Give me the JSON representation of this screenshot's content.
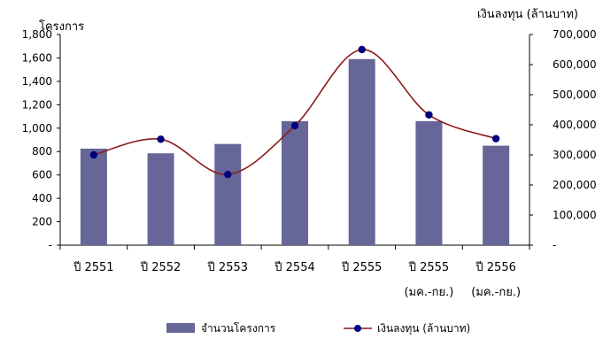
{
  "chart_data": {
    "type": "bar",
    "categories": [
      [
        "ปี 2551"
      ],
      [
        "ปี 2552"
      ],
      [
        "ปี 2553"
      ],
      [
        "ปี 2554"
      ],
      [
        "ปี 2555"
      ],
      [
        "ปี 2555",
        "(มค.-กย.)"
      ],
      [
        "ปี 2556",
        "(มค.-กย.)"
      ]
    ],
    "series": [
      {
        "name": "จำนวนโครงการ",
        "kind": "bar",
        "axis": "left",
        "color": "#666699",
        "values": [
          825,
          785,
          865,
          1060,
          1590,
          1060,
          850
        ]
      },
      {
        "name": "เงินลงทุน (ล้านบาท)",
        "kind": "line",
        "axis": "right",
        "color": "#8B1A1A",
        "marker_color": "#000080",
        "values": [
          300000,
          352000,
          235000,
          397000,
          650000,
          433000,
          354000
        ]
      }
    ],
    "y_left": {
      "title": "โครงการ",
      "ylim": [
        0,
        1800
      ],
      "ticks": [
        0,
        200,
        400,
        600,
        800,
        1000,
        1200,
        1400,
        1600,
        1800
      ],
      "tick_labels": [
        "-",
        "200",
        "400",
        "600",
        "800",
        "1,000",
        "1,200",
        "1,400",
        "1,600",
        "1,800"
      ]
    },
    "y_right": {
      "title": "เงินลงทุน (ล้านบาท)",
      "ylim": [
        0,
        700000
      ],
      "ticks": [
        0,
        100000,
        200000,
        300000,
        400000,
        500000,
        600000,
        700000
      ],
      "tick_labels": [
        "-",
        "100,000",
        "200,000",
        "300,000",
        "400,000",
        "500,000",
        "600,000",
        "700,000"
      ]
    },
    "grid": false,
    "legend": {
      "position": "bottom"
    }
  }
}
